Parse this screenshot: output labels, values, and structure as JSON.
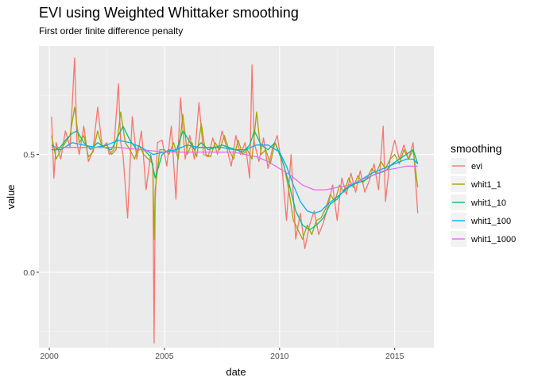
{
  "chart_data": {
    "type": "line",
    "title": "EVI  using Weighted Whittaker smoothing",
    "subtitle": "First order finite difference penalty",
    "xlabel": "date",
    "ylabel": "value",
    "xlim": [
      1999.55,
      2016.7
    ],
    "ylim": [
      -0.32,
      0.96
    ],
    "x_ticks": [
      2000,
      2005,
      2010,
      2015
    ],
    "x_tick_labels": [
      "2000",
      "2005",
      "2010",
      "2015"
    ],
    "y_ticks": [
      0.0,
      0.5
    ],
    "y_tick_labels": [
      "0.0",
      "0.5"
    ],
    "grid": true,
    "legend": {
      "title": "smoothing",
      "position": "right"
    },
    "series": [
      {
        "name": "evi",
        "color": "#F8766D",
        "x": [
          2000.1,
          2000.2,
          2000.3,
          2000.5,
          2000.7,
          2000.9,
          2001.1,
          2001.2,
          2001.3,
          2001.5,
          2001.7,
          2001.9,
          2002.1,
          2002.3,
          2002.5,
          2002.6,
          2002.8,
          2003.0,
          2003.1,
          2003.2,
          2003.4,
          2003.6,
          2003.8,
          2004.0,
          2004.2,
          2004.4,
          2004.5,
          2004.55,
          2004.6,
          2004.7,
          2004.9,
          2005.1,
          2005.3,
          2005.5,
          2005.7,
          2005.9,
          2006.1,
          2006.3,
          2006.5,
          2006.7,
          2006.9,
          2007.1,
          2007.3,
          2007.5,
          2007.7,
          2007.9,
          2008.1,
          2008.3,
          2008.5,
          2008.7,
          2008.8,
          2008.9,
          2009.1,
          2009.3,
          2009.5,
          2009.7,
          2009.9,
          2010.1,
          2010.3,
          2010.5,
          2010.7,
          2010.9,
          2011.1,
          2011.3,
          2011.5,
          2011.7,
          2011.9,
          2012.1,
          2012.3,
          2012.5,
          2012.7,
          2012.9,
          2013.1,
          2013.3,
          2013.5,
          2013.7,
          2013.9,
          2014.1,
          2014.3,
          2014.5,
          2014.6,
          2014.8,
          2015.0,
          2015.2,
          2015.4,
          2015.6,
          2015.8,
          2016.0
        ],
        "values": [
          0.66,
          0.4,
          0.55,
          0.48,
          0.6,
          0.53,
          0.91,
          0.55,
          0.5,
          0.62,
          0.47,
          0.52,
          0.7,
          0.53,
          0.55,
          0.5,
          0.52,
          0.8,
          0.55,
          0.5,
          0.23,
          0.66,
          0.48,
          0.6,
          0.35,
          0.5,
          0.45,
          -0.3,
          0.3,
          0.55,
          0.56,
          0.45,
          0.62,
          0.31,
          0.74,
          0.48,
          0.58,
          0.48,
          0.72,
          0.5,
          0.49,
          0.57,
          0.5,
          0.6,
          0.53,
          0.45,
          0.58,
          0.5,
          0.55,
          0.4,
          0.88,
          0.55,
          0.47,
          0.57,
          0.44,
          0.53,
          0.58,
          0.45,
          0.22,
          0.5,
          0.14,
          0.25,
          0.1,
          0.2,
          0.26,
          0.16,
          0.21,
          0.28,
          0.37,
          0.22,
          0.4,
          0.33,
          0.42,
          0.34,
          0.43,
          0.34,
          0.39,
          0.46,
          0.35,
          0.62,
          0.3,
          0.48,
          0.56,
          0.48,
          0.54,
          0.48,
          0.55,
          0.25
        ]
      },
      {
        "name": "whit1_1",
        "color": "#A3A500",
        "x": [
          2000.1,
          2000.3,
          2000.5,
          2000.7,
          2000.9,
          2001.1,
          2001.3,
          2001.5,
          2001.7,
          2001.9,
          2002.1,
          2002.3,
          2002.5,
          2002.7,
          2002.9,
          2003.1,
          2003.3,
          2003.5,
          2003.7,
          2003.9,
          2004.1,
          2004.3,
          2004.5,
          2004.55,
          2004.6,
          2004.8,
          2005.0,
          2005.2,
          2005.4,
          2005.6,
          2005.8,
          2006.0,
          2006.2,
          2006.4,
          2006.6,
          2006.8,
          2007.0,
          2007.2,
          2007.4,
          2007.6,
          2007.8,
          2008.0,
          2008.2,
          2008.4,
          2008.6,
          2008.8,
          2009.0,
          2009.2,
          2009.4,
          2009.6,
          2009.8,
          2010.0,
          2010.2,
          2010.4,
          2010.6,
          2010.8,
          2011.0,
          2011.2,
          2011.4,
          2011.6,
          2011.8,
          2012.0,
          2012.2,
          2012.4,
          2012.6,
          2012.8,
          2013.0,
          2013.2,
          2013.4,
          2013.6,
          2013.8,
          2014.0,
          2014.2,
          2014.4,
          2014.6,
          2014.8,
          2015.0,
          2015.2,
          2015.4,
          2015.6,
          2015.8,
          2016.0
        ],
        "values": [
          0.58,
          0.48,
          0.52,
          0.55,
          0.58,
          0.7,
          0.55,
          0.58,
          0.49,
          0.51,
          0.6,
          0.53,
          0.54,
          0.5,
          0.52,
          0.68,
          0.55,
          0.52,
          0.48,
          0.54,
          0.5,
          0.48,
          0.46,
          0.14,
          0.35,
          0.52,
          0.52,
          0.5,
          0.55,
          0.48,
          0.67,
          0.5,
          0.55,
          0.49,
          0.63,
          0.5,
          0.49,
          0.55,
          0.52,
          0.58,
          0.52,
          0.48,
          0.56,
          0.5,
          0.52,
          0.48,
          0.68,
          0.5,
          0.52,
          0.46,
          0.55,
          0.5,
          0.45,
          0.35,
          0.22,
          0.18,
          0.14,
          0.2,
          0.16,
          0.22,
          0.23,
          0.27,
          0.33,
          0.3,
          0.37,
          0.34,
          0.4,
          0.36,
          0.41,
          0.38,
          0.4,
          0.44,
          0.42,
          0.47,
          0.44,
          0.48,
          0.5,
          0.46,
          0.52,
          0.48,
          0.52,
          0.36
        ]
      },
      {
        "name": "whit1_10",
        "color": "#00BF7D",
        "x": [
          2000.1,
          2000.4,
          2000.7,
          2001.0,
          2001.2,
          2001.5,
          2001.8,
          2002.1,
          2002.4,
          2002.7,
          2003.0,
          2003.2,
          2003.5,
          2003.8,
          2004.1,
          2004.4,
          2004.6,
          2004.9,
          2005.2,
          2005.5,
          2005.8,
          2006.0,
          2006.3,
          2006.6,
          2006.9,
          2007.2,
          2007.5,
          2007.8,
          2008.1,
          2008.4,
          2008.7,
          2008.9,
          2009.2,
          2009.5,
          2009.8,
          2010.1,
          2010.4,
          2010.7,
          2011.0,
          2011.3,
          2011.6,
          2011.9,
          2012.2,
          2012.5,
          2012.8,
          2013.1,
          2013.4,
          2013.7,
          2014.0,
          2014.3,
          2014.6,
          2014.9,
          2015.2,
          2015.5,
          2015.8,
          2016.0
        ],
        "values": [
          0.54,
          0.52,
          0.56,
          0.59,
          0.6,
          0.55,
          0.52,
          0.55,
          0.53,
          0.52,
          0.58,
          0.62,
          0.56,
          0.52,
          0.52,
          0.49,
          0.4,
          0.5,
          0.52,
          0.51,
          0.6,
          0.57,
          0.52,
          0.55,
          0.52,
          0.53,
          0.54,
          0.53,
          0.52,
          0.51,
          0.54,
          0.6,
          0.54,
          0.52,
          0.55,
          0.48,
          0.38,
          0.26,
          0.2,
          0.18,
          0.2,
          0.23,
          0.29,
          0.31,
          0.35,
          0.37,
          0.38,
          0.39,
          0.41,
          0.42,
          0.43,
          0.46,
          0.48,
          0.5,
          0.52,
          0.46
        ]
      },
      {
        "name": "whit1_100",
        "color": "#00B0F6",
        "x": [
          2000.1,
          2000.5,
          2001.0,
          2001.5,
          2002.0,
          2002.5,
          2003.0,
          2003.5,
          2004.0,
          2004.5,
          2005.0,
          2005.5,
          2006.0,
          2006.5,
          2007.0,
          2007.5,
          2008.0,
          2008.5,
          2009.0,
          2009.5,
          2010.0,
          2010.3,
          2010.6,
          2010.9,
          2011.2,
          2011.5,
          2011.8,
          2012.1,
          2012.5,
          2013.0,
          2013.5,
          2014.0,
          2014.5,
          2015.0,
          2015.5,
          2015.8,
          2016.0
        ],
        "values": [
          0.52,
          0.52,
          0.55,
          0.54,
          0.53,
          0.54,
          0.56,
          0.55,
          0.53,
          0.5,
          0.51,
          0.52,
          0.54,
          0.53,
          0.53,
          0.53,
          0.52,
          0.52,
          0.54,
          0.54,
          0.51,
          0.45,
          0.37,
          0.3,
          0.26,
          0.25,
          0.26,
          0.29,
          0.32,
          0.36,
          0.39,
          0.42,
          0.44,
          0.46,
          0.48,
          0.48,
          0.46
        ]
      },
      {
        "name": "whit1_1000",
        "color": "#E76BF3",
        "x": [
          2000.1,
          2001.0,
          2002.0,
          2003.0,
          2004.0,
          2005.0,
          2006.0,
          2007.0,
          2008.0,
          2008.5,
          2009.0,
          2009.5,
          2010.0,
          2010.5,
          2011.0,
          2011.5,
          2012.0,
          2012.5,
          2013.0,
          2013.5,
          2014.0,
          2014.5,
          2015.0,
          2015.5,
          2016.0
        ],
        "values": [
          0.53,
          0.53,
          0.53,
          0.53,
          0.52,
          0.51,
          0.51,
          0.51,
          0.51,
          0.5,
          0.49,
          0.47,
          0.44,
          0.41,
          0.37,
          0.35,
          0.35,
          0.36,
          0.37,
          0.39,
          0.41,
          0.43,
          0.44,
          0.45,
          0.45
        ]
      }
    ]
  }
}
